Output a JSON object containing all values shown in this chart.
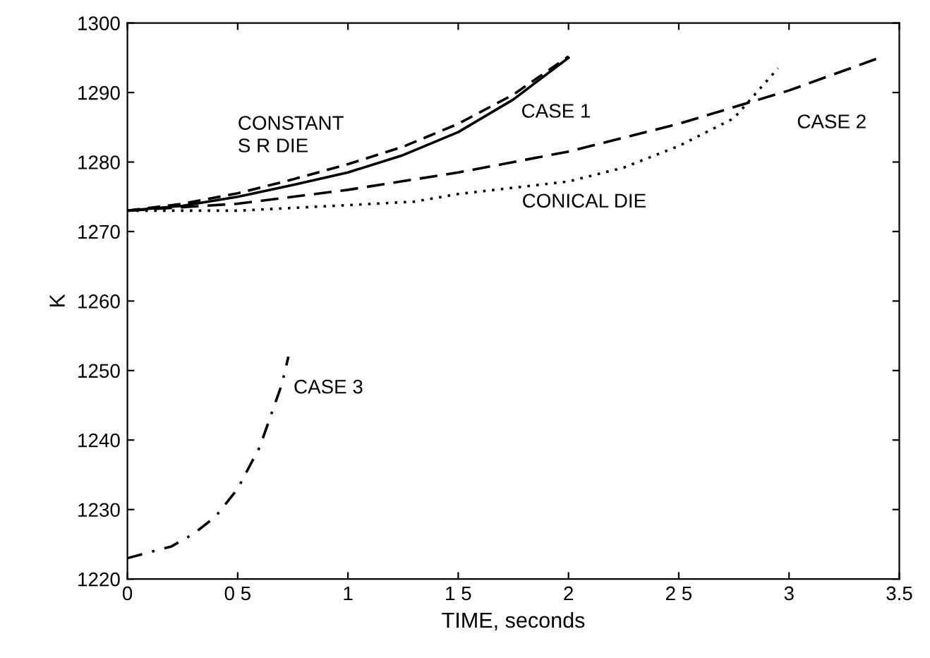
{
  "chart_data": {
    "type": "line",
    "xlabel": "TIME, seconds",
    "ylabel": "K",
    "xlim": [
      0,
      3.5
    ],
    "ylim": [
      1220,
      1300
    ],
    "xticks": [
      0,
      {
        "value": 0.5,
        "label": "0 5"
      },
      1,
      {
        "value": 1.5,
        "label": "1 5"
      },
      2,
      {
        "value": 2.5,
        "label": "2 5"
      },
      3,
      3.5
    ],
    "yticks": [
      1220,
      1230,
      1240,
      1250,
      1260,
      1270,
      1280,
      1290,
      1300
    ],
    "grid": false,
    "legend": false,
    "marker": "none",
    "series": [
      {
        "name": "CASE 1",
        "color": "#000000",
        "line_style": "solid",
        "x": [
          0,
          0.25,
          0.5,
          0.75,
          1.0,
          1.25,
          1.5,
          1.75,
          2.0
        ],
        "values": [
          1273,
          1273.7,
          1275,
          1276.7,
          1278.5,
          1281,
          1284.3,
          1289,
          1295
        ]
      },
      {
        "name": "CONSTANT\nS R DIE",
        "color": "#000000",
        "line_style": "dashed",
        "x": [
          0,
          0.25,
          0.5,
          0.75,
          1.0,
          1.25,
          1.5,
          1.75,
          2.0
        ],
        "values": [
          1273,
          1274,
          1275.5,
          1277.5,
          1279.7,
          1282.2,
          1285.5,
          1289.7,
          1295.2
        ]
      },
      {
        "name": "CASE 2",
        "color": "#000000",
        "line_style": "longdash",
        "x": [
          0,
          0.5,
          1.0,
          1.5,
          2.0,
          2.5,
          3.0,
          3.41
        ],
        "values": [
          1273,
          1274,
          1276,
          1278.5,
          1281.5,
          1285.5,
          1290.3,
          1295
        ]
      },
      {
        "name": "CONICAL DIE",
        "color": "#000000",
        "line_style": "dotted",
        "x": [
          0,
          0.5,
          1.0,
          1.3,
          1.5,
          2.0,
          2.25,
          2.5,
          2.75,
          2.95
        ],
        "values": [
          1273,
          1273,
          1273.8,
          1274.3,
          1275.4,
          1277.2,
          1279.2,
          1282.3,
          1286.3,
          1293.5
        ]
      },
      {
        "name": "CASE 3",
        "color": "#000000",
        "line_style": "dashdot",
        "x": [
          0,
          0.2,
          0.3,
          0.4,
          0.5,
          0.6,
          0.7,
          0.73
        ],
        "values": [
          1223,
          1224.7,
          1226.5,
          1229,
          1233,
          1239,
          1248,
          1252
        ]
      }
    ]
  }
}
